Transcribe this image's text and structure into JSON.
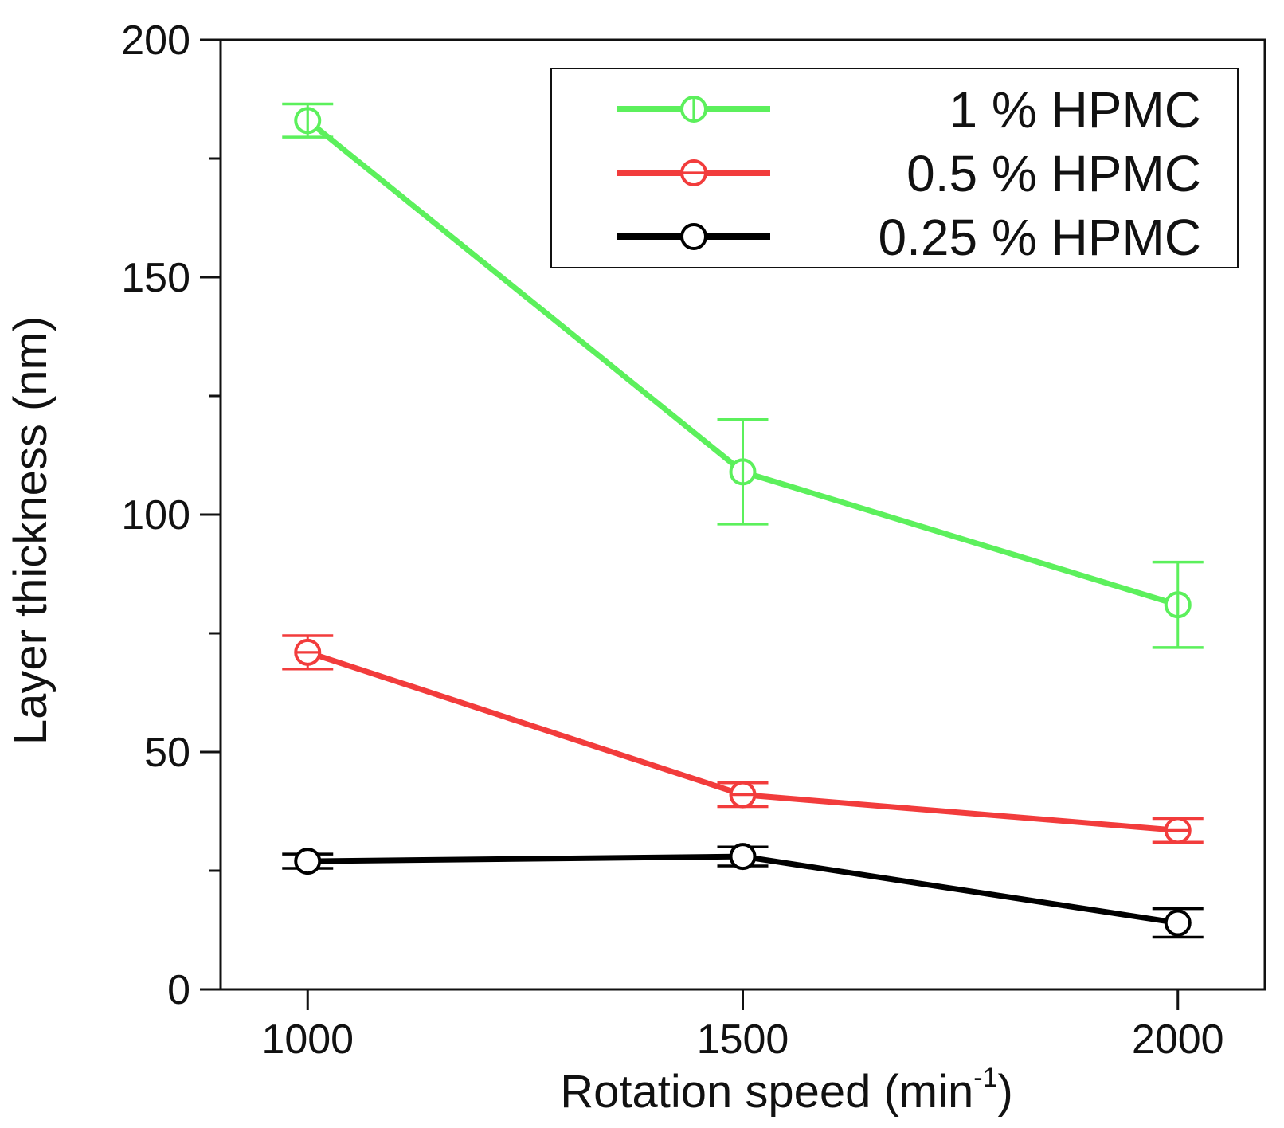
{
  "chart_data": {
    "type": "line",
    "title": "",
    "xlabel": "Rotation speed (min",
    "xlabel_sup": "-1",
    "xlabel_close": ")",
    "ylabel": "Layer thickness (nm)",
    "x": [
      1000,
      1500,
      2000
    ],
    "x_ticks": [
      1000,
      1500,
      2000
    ],
    "y_ticks": [
      0,
      50,
      100,
      150,
      200
    ],
    "y_minor_ticks": [
      25,
      75,
      125,
      175
    ],
    "xlim": [
      900,
      2100
    ],
    "ylim": [
      0,
      200
    ],
    "grid": false,
    "legend_position": "top-right",
    "series": [
      {
        "name": "1 % HPMC",
        "color": "#5cf05c",
        "marker": "circle-open-vertical-bar",
        "values": [
          183,
          109,
          81
        ],
        "errors": [
          3.5,
          11,
          9
        ]
      },
      {
        "name": "0.5 % HPMC",
        "color": "#f23c3c",
        "marker": "circle-open-horizontal-bar",
        "values": [
          71,
          41,
          33.5
        ],
        "errors": [
          3.5,
          2.5,
          2.5
        ]
      },
      {
        "name": "0.25 % HPMC",
        "color": "#000000",
        "marker": "circle-open",
        "values": [
          27,
          28,
          14
        ],
        "errors": [
          1.5,
          2,
          3
        ]
      }
    ]
  }
}
